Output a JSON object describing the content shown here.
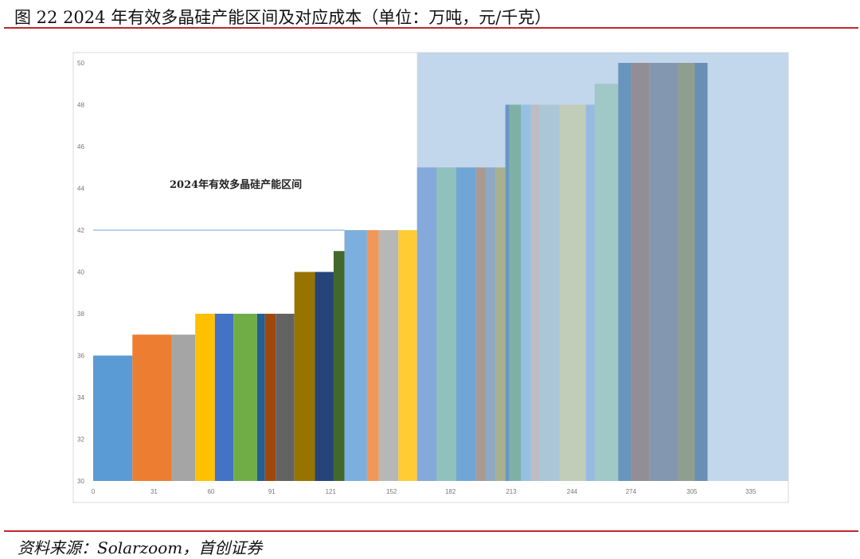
{
  "figure": {
    "title": "图 22 2024 年有效多晶硅产能区间及对应成本（单位：万吨，元/千克）",
    "source": "资料来源：Solarzoom，首创证券"
  },
  "chart_data": {
    "type": "bar",
    "subtype": "variable-width step bar (capacity vs. cost)",
    "title": "",
    "xlabel": "",
    "ylabel": "",
    "xlim": [
      0,
      354
    ],
    "ylim": [
      30,
      50
    ],
    "x_ticks": [
      0,
      31,
      60,
      91,
      121,
      152,
      182,
      213,
      244,
      274,
      305,
      335
    ],
    "y_ticks": [
      30,
      32,
      34,
      36,
      38,
      40,
      42,
      44,
      46,
      48,
      50
    ],
    "grid": false,
    "legend": "none",
    "annotation": "2024年有效多晶硅产能区间",
    "reference_line": {
      "y": 42,
      "x": [
        0,
        128
      ],
      "color": "#9dc3e6"
    },
    "highlight_region": {
      "x": [
        165,
        354
      ],
      "color": "#c2d6ec"
    },
    "bars": [
      {
        "x0": 0,
        "x1": 20,
        "value": 36,
        "color": "#5b9bd5"
      },
      {
        "x0": 20,
        "x1": 40,
        "value": 37,
        "color": "#ed7d31"
      },
      {
        "x0": 40,
        "x1": 52,
        "value": 37,
        "color": "#a5a5a5"
      },
      {
        "x0": 52,
        "x1": 62,
        "value": 38,
        "color": "#ffc000"
      },
      {
        "x0": 62,
        "x1": 71.5,
        "value": 38,
        "color": "#4472c4"
      },
      {
        "x0": 71.5,
        "x1": 83.5,
        "value": 38,
        "color": "#70ad47"
      },
      {
        "x0": 83.5,
        "x1": 87.5,
        "value": 38,
        "color": "#255e91"
      },
      {
        "x0": 87.5,
        "x1": 93,
        "value": 38,
        "color": "#9e480e"
      },
      {
        "x0": 93,
        "x1": 102.5,
        "value": 38,
        "color": "#636363"
      },
      {
        "x0": 102.5,
        "x1": 113,
        "value": 40,
        "color": "#997300"
      },
      {
        "x0": 113,
        "x1": 122.5,
        "value": 40,
        "color": "#264478"
      },
      {
        "x0": 122.5,
        "x1": 128,
        "value": 41,
        "color": "#43682b"
      },
      {
        "x0": 128,
        "x1": 139.5,
        "value": 42,
        "color": "#7cafdd"
      },
      {
        "x0": 139.5,
        "x1": 145.5,
        "value": 42,
        "color": "#f1975a"
      },
      {
        "x0": 145.5,
        "x1": 155.5,
        "value": 42,
        "color": "#b7b7b7"
      },
      {
        "x0": 155.5,
        "x1": 165,
        "value": 42,
        "color": "#ffcd33"
      },
      {
        "x0": 165,
        "x1": 175,
        "value": 45,
        "color": "#86a9db"
      },
      {
        "x0": 175,
        "x1": 185,
        "value": 45,
        "color": "#91c1bc"
      },
      {
        "x0": 185,
        "x1": 195,
        "value": 45,
        "color": "#6fa6d6"
      },
      {
        "x0": 195,
        "x1": 200,
        "value": 45,
        "color": "#a99b93"
      },
      {
        "x0": 200,
        "x1": 205,
        "value": 45,
        "color": "#8fa9c4"
      },
      {
        "x0": 205,
        "x1": 210,
        "value": 45,
        "color": "#a9b08f"
      },
      {
        "x0": 210,
        "x1": 212,
        "value": 48,
        "color": "#6b96c4"
      },
      {
        "x0": 212,
        "x1": 218,
        "value": 48,
        "color": "#7fb0a6"
      },
      {
        "x0": 218,
        "x1": 223,
        "value": 48,
        "color": "#95c0e3"
      },
      {
        "x0": 223,
        "x1": 227.5,
        "value": 48,
        "color": "#bcbcc2"
      },
      {
        "x0": 227.5,
        "x1": 237.5,
        "value": 48,
        "color": "#abc6d6"
      },
      {
        "x0": 237.5,
        "x1": 251,
        "value": 48,
        "color": "#c1ccb9"
      },
      {
        "x0": 251,
        "x1": 255.5,
        "value": 48,
        "color": "#97bae3"
      },
      {
        "x0": 255.5,
        "x1": 267.5,
        "value": 49,
        "color": "#9fc8c6"
      },
      {
        "x0": 267.5,
        "x1": 274,
        "value": 50,
        "color": "#6894bd"
      },
      {
        "x0": 274,
        "x1": 283.5,
        "value": 50,
        "color": "#918f95"
      },
      {
        "x0": 283.5,
        "x1": 298,
        "value": 50,
        "color": "#8497b0"
      },
      {
        "x0": 298,
        "x1": 306.5,
        "value": 50,
        "color": "#8f9f8f"
      },
      {
        "x0": 306.5,
        "x1": 313,
        "value": 50,
        "color": "#6a8fb5"
      }
    ]
  }
}
